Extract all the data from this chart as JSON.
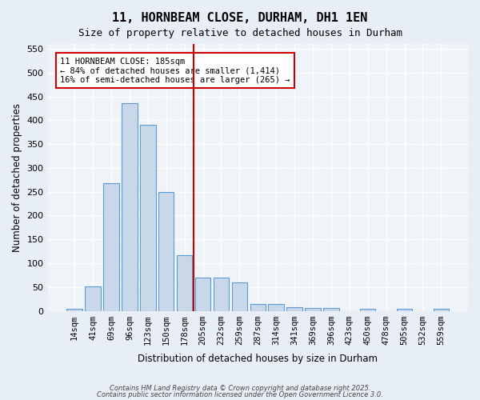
{
  "title_line1": "11, HORNBEAM CLOSE, DURHAM, DH1 1EN",
  "title_line2": "Size of property relative to detached houses in Durham",
  "xlabel": "Distribution of detached houses by size in Durham",
  "ylabel": "Number of detached properties",
  "bar_labels": [
    "14sqm",
    "41sqm",
    "69sqm",
    "96sqm",
    "123sqm",
    "150sqm",
    "178sqm",
    "205sqm",
    "232sqm",
    "259sqm",
    "287sqm",
    "314sqm",
    "341sqm",
    "369sqm",
    "396sqm",
    "423sqm",
    "450sqm",
    "478sqm",
    "505sqm",
    "532sqm",
    "559sqm"
  ],
  "bar_values": [
    4,
    51,
    268,
    435,
    390,
    250,
    117,
    70,
    70,
    60,
    14,
    14,
    8,
    6,
    6,
    0,
    4,
    0,
    4,
    0,
    4
  ],
  "bar_color": "#c8d8e8",
  "bar_edge_color": "#5b9bd5",
  "ylim": [
    0,
    560
  ],
  "yticks": [
    0,
    50,
    100,
    150,
    200,
    250,
    300,
    350,
    400,
    450,
    500,
    550
  ],
  "vline_x": 7.0,
  "vline_color": "#cc0000",
  "annotation_title": "11 HORNBEAM CLOSE: 185sqm",
  "annotation_line1": "← 84% of detached houses are smaller (1,414)",
  "annotation_line2": "16% of semi-detached houses are larger (265) →",
  "annotation_box_color": "#ffffff",
  "annotation_box_edge_color": "#cc0000",
  "bg_color": "#e8eef5",
  "plot_bg_color": "#f0f4f8",
  "footer_line1": "Contains HM Land Registry data © Crown copyright and database right 2025.",
  "footer_line2": "Contains public sector information licensed under the Open Government Licence 3.0."
}
